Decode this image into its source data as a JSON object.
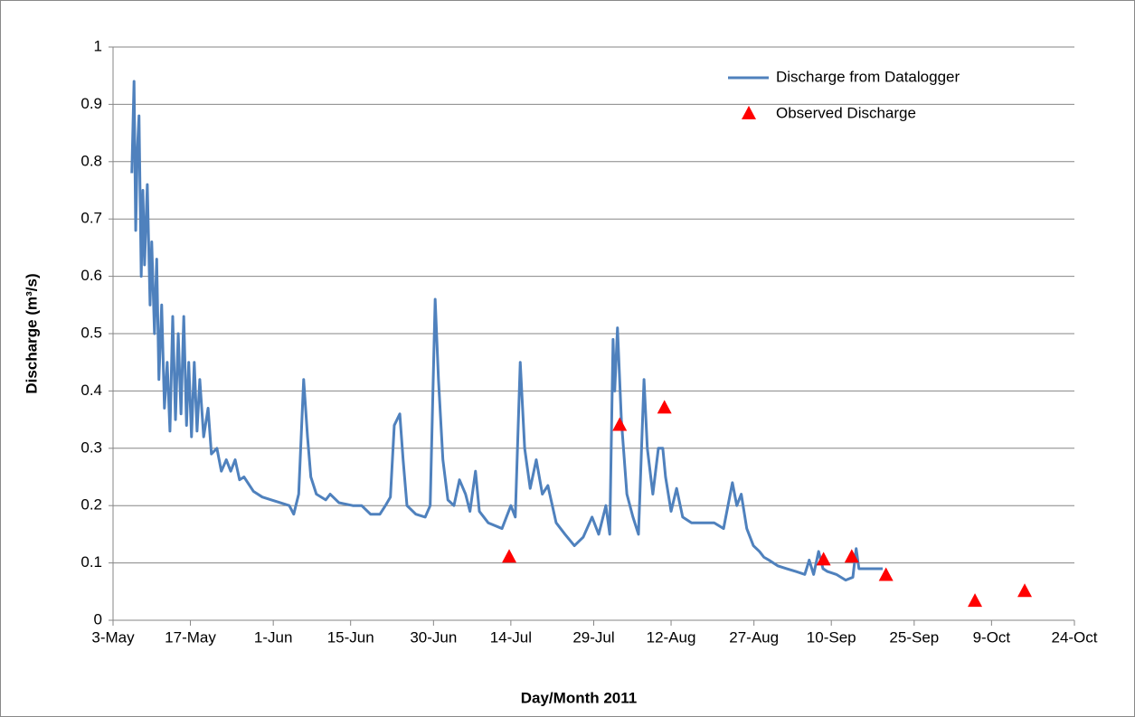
{
  "chart_data": {
    "type": "line",
    "xlabel": "Day/Month 2011",
    "ylabel": "Discharge (m³/s)",
    "xlim": [
      123,
      297
    ],
    "ylim": [
      0,
      1
    ],
    "xticks": [
      {
        "value": 123,
        "label": "3-May"
      },
      {
        "value": 137,
        "label": "17-May"
      },
      {
        "value": 152,
        "label": "1-Jun"
      },
      {
        "value": 166,
        "label": "15-Jun"
      },
      {
        "value": 181,
        "label": "30-Jun"
      },
      {
        "value": 195,
        "label": "14-Jul"
      },
      {
        "value": 210,
        "label": "29-Jul"
      },
      {
        "value": 224,
        "label": "12-Aug"
      },
      {
        "value": 239,
        "label": "27-Aug"
      },
      {
        "value": 253,
        "label": "10-Sep"
      },
      {
        "value": 268,
        "label": "25-Sep"
      },
      {
        "value": 282,
        "label": "9-Oct"
      },
      {
        "value": 297,
        "label": "24-Oct"
      }
    ],
    "yticks": [
      0,
      0.1,
      0.2,
      0.3,
      0.4,
      0.5,
      0.6,
      0.7,
      0.8,
      0.9,
      1
    ],
    "grid": true,
    "legend": "upper right",
    "series": [
      {
        "name": "Discharge from Datalogger",
        "color": "#4f81bd",
        "type": "line",
        "x": [
          126.4,
          126.6,
          126.8,
          127.1,
          127.4,
          127.7,
          128.1,
          128.4,
          128.7,
          129.2,
          129.7,
          130.0,
          130.5,
          130.9,
          131.3,
          131.8,
          132.3,
          132.8,
          133.3,
          133.8,
          134.3,
          134.8,
          135.3,
          135.8,
          136.3,
          136.7,
          137.2,
          137.7,
          138.2,
          138.7,
          139.4,
          140.2,
          140.8,
          141.8,
          142.6,
          143.5,
          144.3,
          145.1,
          145.9,
          146.7,
          148.4,
          150.0,
          151.6,
          153.3,
          154.9,
          155.7,
          156.6,
          157.5,
          158.2,
          158.8,
          159.8,
          161.5,
          162.3,
          163.9,
          166.4,
          168.0,
          169.6,
          171.3,
          172.3,
          173.2,
          173.9,
          174.9,
          175.5,
          176.2,
          177.8,
          179.5,
          180.4,
          181.3,
          181.9,
          182.7,
          183.6,
          184.7,
          185.7,
          186.8,
          187.6,
          188.6,
          189.3,
          190.9,
          193.4,
          195.0,
          195.8,
          196.7,
          197.5,
          198.5,
          199.6,
          200.7,
          201.7,
          203.2,
          204.8,
          206.5,
          208.1,
          209.7,
          210.9,
          212.2,
          212.9,
          213.5,
          213.8,
          214.3,
          215.0,
          216.0,
          217.1,
          218.1,
          219.1,
          219.7,
          220.7,
          221.7,
          222.5,
          223.0,
          224.0,
          225.0,
          226.1,
          227.7,
          229.4,
          231.8,
          233.5,
          235.1,
          235.9,
          236.7,
          237.7,
          238.9,
          240.0,
          240.8,
          241.7,
          243.3,
          244.9,
          246.6,
          248.2,
          249.0,
          249.8,
          250.7,
          251.5,
          252.3,
          253.9,
          255.6,
          256.9,
          257.5,
          258.0,
          259.6,
          261.3,
          262.3
        ],
        "values": [
          0.78,
          0.86,
          0.94,
          0.68,
          0.82,
          0.88,
          0.6,
          0.75,
          0.62,
          0.76,
          0.55,
          0.66,
          0.5,
          0.63,
          0.42,
          0.55,
          0.37,
          0.45,
          0.33,
          0.53,
          0.35,
          0.5,
          0.36,
          0.53,
          0.34,
          0.45,
          0.32,
          0.45,
          0.33,
          0.42,
          0.32,
          0.37,
          0.29,
          0.3,
          0.26,
          0.28,
          0.26,
          0.28,
          0.245,
          0.25,
          0.225,
          0.215,
          0.21,
          0.205,
          0.2,
          0.185,
          0.22,
          0.42,
          0.32,
          0.25,
          0.22,
          0.21,
          0.22,
          0.205,
          0.2,
          0.2,
          0.185,
          0.185,
          0.2,
          0.215,
          0.34,
          0.36,
          0.28,
          0.2,
          0.185,
          0.18,
          0.2,
          0.56,
          0.42,
          0.28,
          0.21,
          0.2,
          0.245,
          0.22,
          0.19,
          0.26,
          0.19,
          0.17,
          0.16,
          0.2,
          0.18,
          0.45,
          0.3,
          0.23,
          0.28,
          0.22,
          0.235,
          0.17,
          0.15,
          0.13,
          0.145,
          0.18,
          0.15,
          0.2,
          0.15,
          0.49,
          0.4,
          0.51,
          0.35,
          0.22,
          0.18,
          0.15,
          0.42,
          0.3,
          0.22,
          0.3,
          0.3,
          0.25,
          0.19,
          0.23,
          0.18,
          0.17,
          0.17,
          0.17,
          0.16,
          0.24,
          0.2,
          0.22,
          0.16,
          0.13,
          0.12,
          0.11,
          0.105,
          0.095,
          0.09,
          0.085,
          0.08,
          0.105,
          0.08,
          0.12,
          0.09,
          0.085,
          0.08,
          0.07,
          0.075,
          0.125,
          0.09,
          0.09,
          0.09,
          0.09
        ]
      },
      {
        "name": "Observed Discharge",
        "color": "#ff0000",
        "type": "scatter",
        "marker": "triangle",
        "x": [
          194.7,
          214.7,
          222.8,
          251.6,
          256.7,
          262.9,
          279.0,
          288.0
        ],
        "values": [
          0.11,
          0.34,
          0.37,
          0.105,
          0.11,
          0.078,
          0.033,
          0.05
        ]
      }
    ]
  }
}
